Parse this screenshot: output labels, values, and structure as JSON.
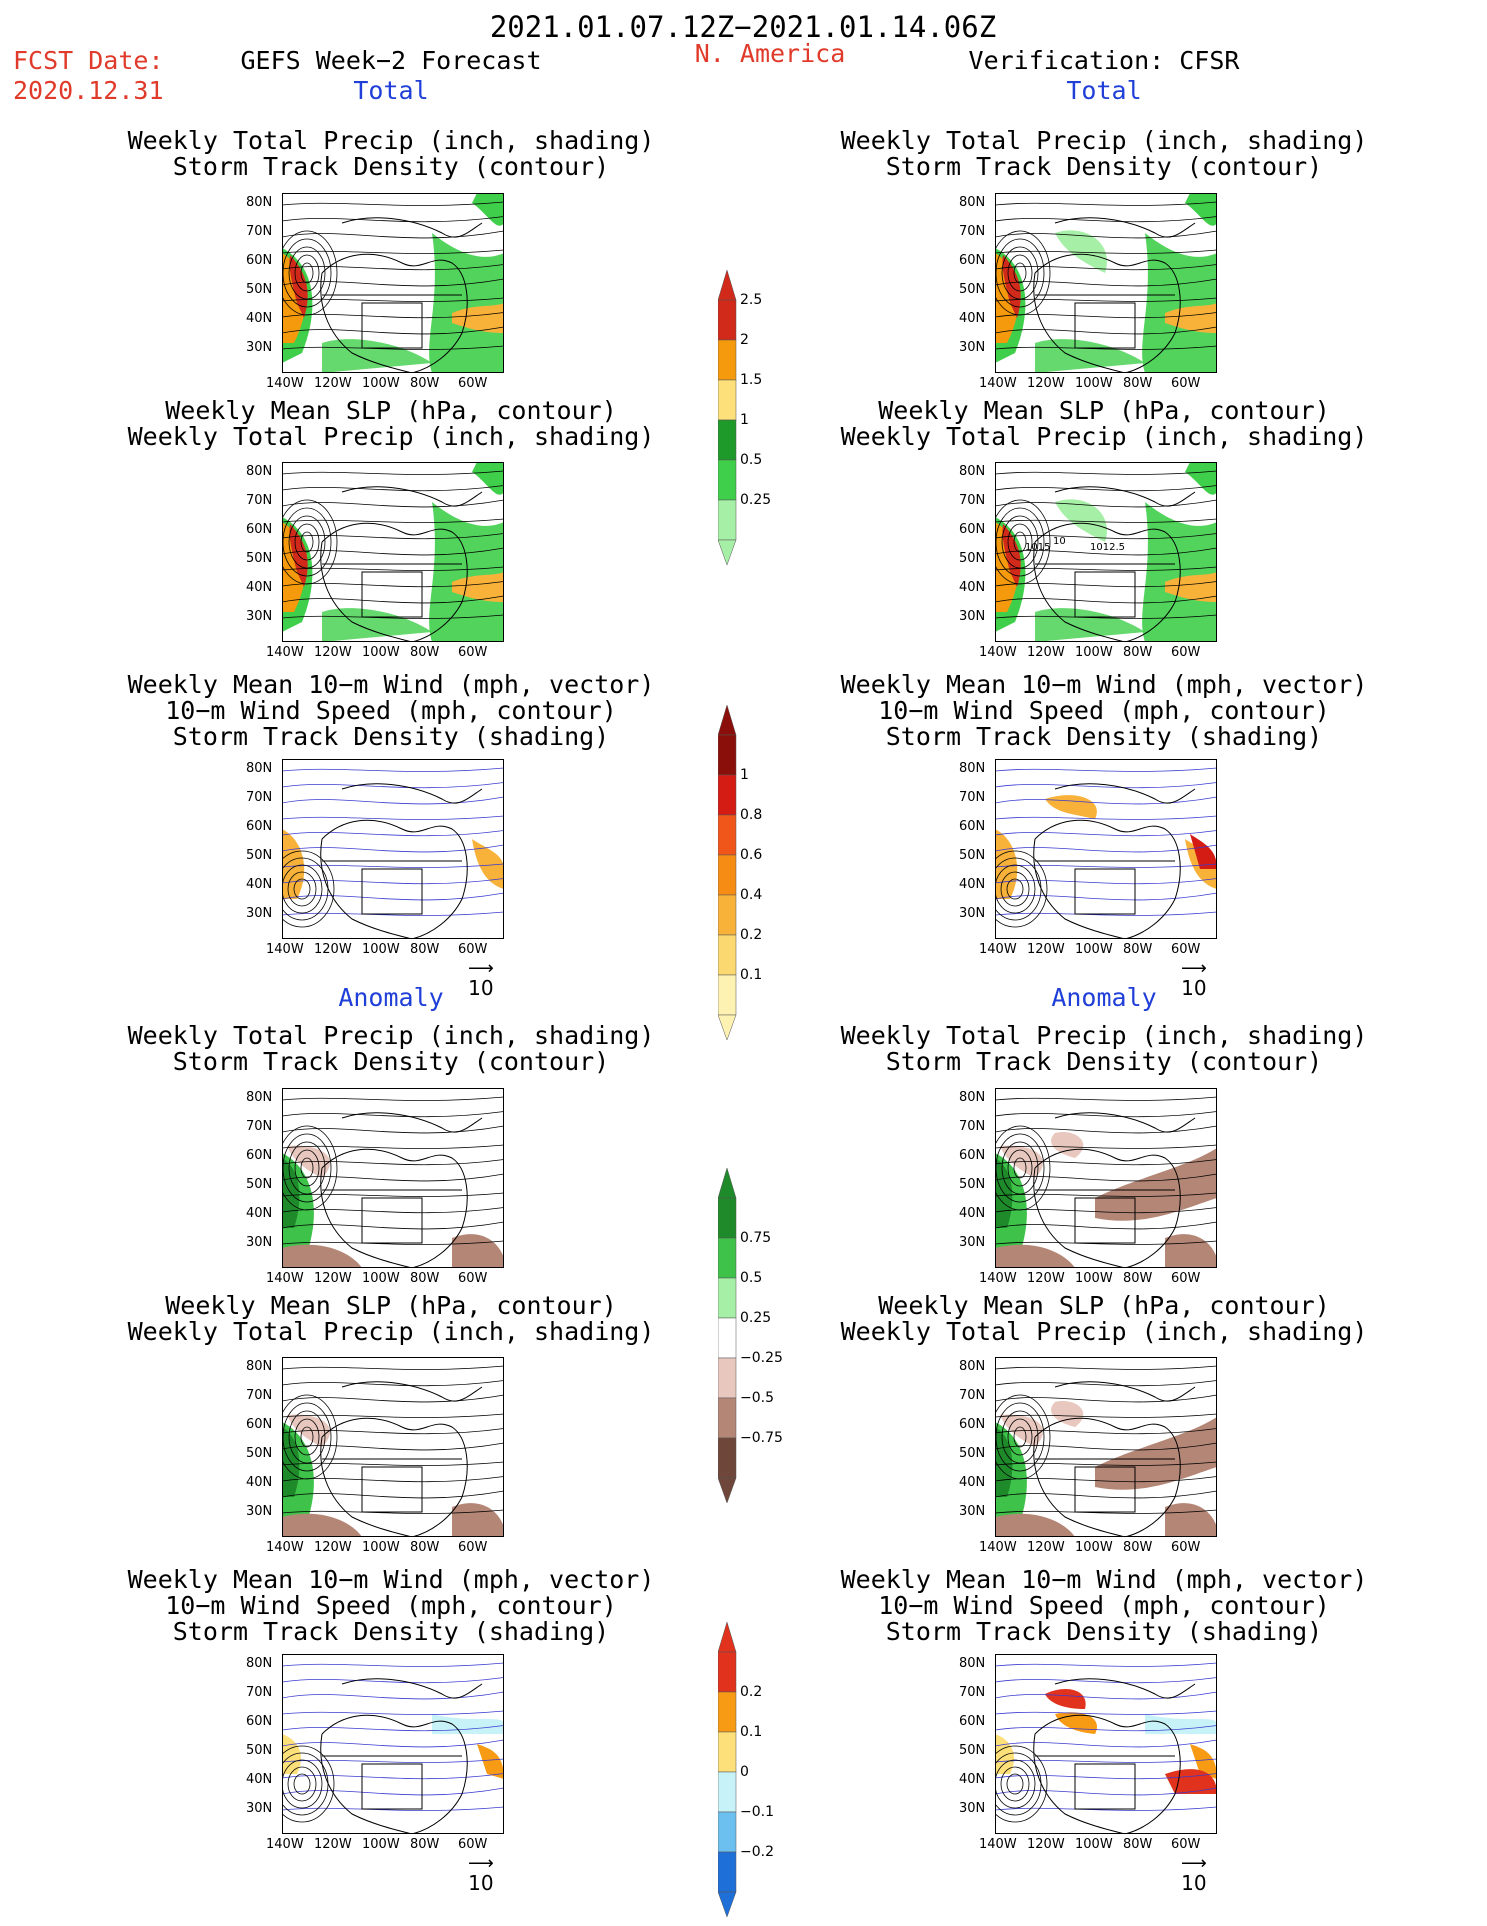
{
  "header": {
    "period": "2021.01.07.12Z−2021.01.14.06Z",
    "fcst_label": "FCST Date:",
    "fcst_date": "2020.12.31",
    "forecast_title": "GEFS Week−2 Forecast",
    "region": "N. America",
    "verification": "Verification: CFSR"
  },
  "sections": {
    "total": "Total",
    "anomaly": "Anomaly"
  },
  "panel_titles": {
    "precip_storm": [
      "Weekly Total Precip (inch, shading)",
      "Storm Track Density (contour)"
    ],
    "slp_precip": [
      "Weekly Mean SLP (hPa, contour)",
      "Weekly Total Precip (inch, shading)"
    ],
    "wind_storm": [
      "Weekly Mean 10−m Wind (mph, vector)",
      "10−m Wind Speed (mph, contour)",
      "Storm Track Density (shading)"
    ]
  },
  "axes": {
    "lat_ticks": [
      "80N",
      "70N",
      "60N",
      "50N",
      "40N",
      "30N"
    ],
    "lon_ticks": [
      "140W",
      "120W",
      "100W",
      "80W",
      "60W"
    ]
  },
  "vector_ref": "10",
  "colorbars": {
    "precip_total": {
      "labels": [
        "2.5",
        "2",
        "1.5",
        "1",
        "0.5",
        "0.25"
      ],
      "colors": [
        "#d22a1a",
        "#f59a0c",
        "#fde07a",
        "#1e9a2a",
        "#3fcf4a",
        "#a6efa6"
      ]
    },
    "storm_total": {
      "labels": [
        "1",
        "0.8",
        "0.6",
        "0.4",
        "0.2",
        "0.1"
      ],
      "colors": [
        "#8a0f0a",
        "#d41c14",
        "#f0561a",
        "#f68c14",
        "#f8b23a",
        "#fbd870",
        "#fdf2b2"
      ]
    },
    "precip_anom": {
      "labels": [
        "0.75",
        "0.5",
        "0.25",
        "−0.25",
        "−0.5",
        "−0.75"
      ],
      "colors": [
        "#1e8a2a",
        "#3ec24a",
        "#a6efa6",
        "#ffffff",
        "#e8c8be",
        "#b48676",
        "#6e463a"
      ]
    },
    "storm_anom": {
      "labels": [
        "0.2",
        "0.1",
        "0",
        "−0.1",
        "−0.2"
      ],
      "colors": [
        "#e0321c",
        "#f79a14",
        "#fde07a",
        "#c6f2f8",
        "#6cc0f0",
        "#1e6fd8"
      ]
    }
  },
  "annotations": {
    "slp_obs_labels": [
      "1015",
      "10",
      "1012.5"
    ]
  }
}
